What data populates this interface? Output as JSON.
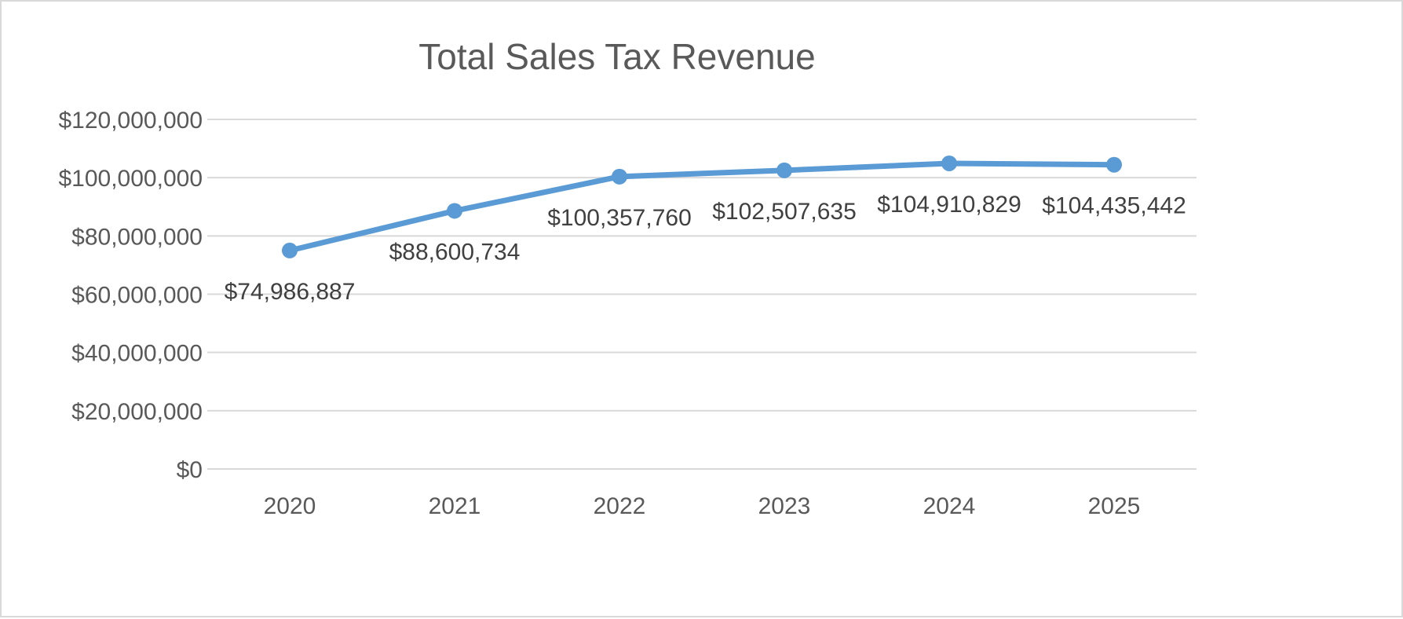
{
  "chart_data": {
    "type": "line",
    "title": "Total Sales Tax Revenue",
    "xlabel": "",
    "ylabel": "",
    "categories": [
      "2020",
      "2021",
      "2022",
      "2023",
      "2024",
      "2025"
    ],
    "values": [
      74986887,
      88600734,
      100357760,
      102507635,
      104910829,
      104435442
    ],
    "data_labels": [
      "$74,986,887",
      "$88,600,734",
      "$100,357,760",
      "$102,507,635",
      "$104,910,829",
      "$104,435,442"
    ],
    "ylim": [
      0,
      120000000
    ],
    "y_ticks": [
      0,
      20000000,
      40000000,
      60000000,
      80000000,
      100000000,
      120000000
    ],
    "y_tick_labels": [
      "$0",
      "$20,000,000",
      "$40,000,000",
      "$60,000,000",
      "$80,000,000",
      "$100,000,000",
      "$120,000,000"
    ],
    "grid": true,
    "legend": "none",
    "colors": {
      "line": "#5b9bd5",
      "grid": "#d9d9d9",
      "text": "#595959",
      "label": "#404040"
    }
  }
}
